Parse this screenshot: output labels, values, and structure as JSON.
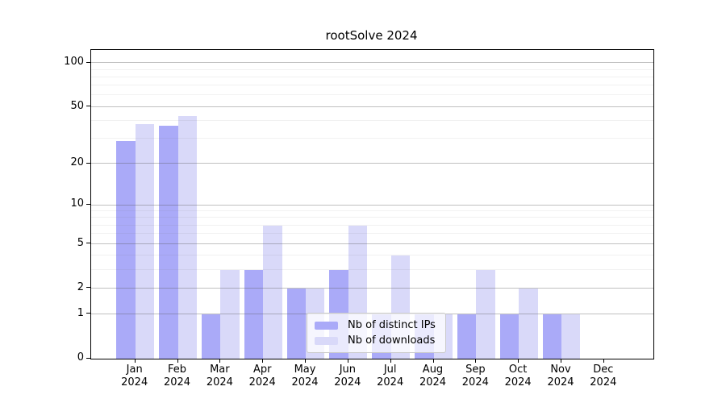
{
  "chart_data": {
    "type": "bar",
    "title": "rootSolve 2024",
    "months": [
      "Jan",
      "Feb",
      "Mar",
      "Apr",
      "May",
      "Jun",
      "Jul",
      "Aug",
      "Sep",
      "Oct",
      "Nov",
      "Dec"
    ],
    "year": "2024",
    "series": [
      {
        "name": "Nb of distinct IPs",
        "color": "#aaaaf8",
        "values": [
          29,
          37,
          1,
          3,
          2,
          3,
          1,
          1,
          1,
          1,
          1,
          0
        ]
      },
      {
        "name": "Nb of downloads",
        "color": "#d9d9f9",
        "values": [
          38,
          43,
          3,
          7,
          2,
          7,
          4,
          1,
          3,
          2,
          1,
          0
        ]
      }
    ],
    "y_scale": "log1p",
    "ylim": [
      0,
      123
    ],
    "y_ticks": [
      0,
      1,
      2,
      5,
      10,
      20,
      50,
      100
    ],
    "y_minor_ticks": [
      3,
      4,
      6,
      7,
      8,
      9,
      30,
      40,
      60,
      70,
      80,
      90
    ],
    "grid": true,
    "legend_position": "bottom-center"
  }
}
